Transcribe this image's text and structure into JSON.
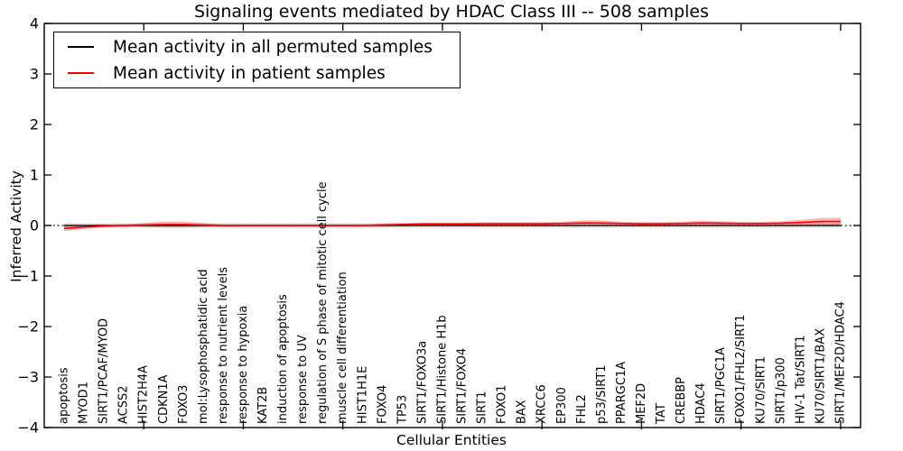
{
  "figure": {
    "title": "Signaling events mediated by HDAC Class III -- 508 samples",
    "xlabel": "Cellular Entities",
    "ylabel": "Inferred Activity"
  },
  "legend": {
    "entries": [
      {
        "label": "Mean activity in all permuted samples",
        "color": "#000000"
      },
      {
        "label": "Mean activity in patient samples",
        "color": "#ff0000"
      }
    ],
    "position": "upper left"
  },
  "chart_data": {
    "type": "line",
    "title": "Signaling events mediated by HDAC Class III -- 508 samples",
    "xlabel": "Cellular Entities",
    "ylabel": "Inferred Activity",
    "ylim": [
      -4,
      4
    ],
    "ytick_values": [
      4,
      3,
      2,
      1,
      0,
      -1,
      -2,
      -3,
      -4
    ],
    "ytick_labels": [
      "4",
      "3",
      "2",
      "1",
      "0",
      "−1",
      "−2",
      "−3",
      "−4"
    ],
    "xtick_positions": [
      4,
      9,
      14,
      19,
      24,
      29,
      34,
      39
    ],
    "zero_reference_line": 0,
    "grid": false,
    "legend_position": "upper left",
    "categories": [
      "apoptosis",
      "MYOD1",
      "SIRT1/PCAF/MYOD",
      "ACSS2",
      "HIST2H4A",
      "CDKN1A",
      "FOXO3",
      "mol:Lysophosphatidic acid",
      "response to nutrient levels",
      "response to hypoxia",
      "KAT2B",
      "induction of apoptosis",
      "response to UV",
      "regulation of S phase of mitotic cell cycle",
      "muscle cell differentiation",
      "HIST1H1E",
      "FOXO4",
      "TP53",
      "SIRT1/FOXO3a",
      "SIRT1/Histone H1b",
      "SIRT1/FOXO4",
      "SIRT1",
      "FOXO1",
      "BAX",
      "XRCC6",
      "EP300",
      "FHL2",
      "p53/SIRT1",
      "PPARGC1A",
      "MEF2D",
      "TAT",
      "CREBBP",
      "HDAC4",
      "SIRT1/PGC1A",
      "FOXO1/FHL2/SIRT1",
      "KU70/SIRT1",
      "SIRT1/p300",
      "HIV-1 Tat/SIRT1",
      "KU70/SIRT1/BAX",
      "SIRT1/MEF2D/HDAC4"
    ],
    "series": [
      {
        "name": "Mean activity in all permuted samples",
        "color": "#000000",
        "band_color": "rgba(0,0,0,0.13)",
        "values": [
          0,
          0,
          0,
          0,
          0,
          0,
          0,
          0,
          0,
          0,
          0,
          0,
          0,
          0,
          0,
          0,
          0,
          0,
          0,
          0,
          0,
          0,
          0,
          0,
          0,
          0,
          0,
          0,
          0,
          0,
          0,
          0,
          0,
          0,
          0,
          0,
          0,
          0,
          0,
          0
        ],
        "band_half_width": [
          0.045,
          0.045,
          0.045,
          0.045,
          0.045,
          0.045,
          0.045,
          0.045,
          0.045,
          0.045,
          0.045,
          0.045,
          0.045,
          0.045,
          0.045,
          0.045,
          0.045,
          0.045,
          0.045,
          0.045,
          0.045,
          0.045,
          0.045,
          0.045,
          0.045,
          0.045,
          0.045,
          0.045,
          0.045,
          0.045,
          0.045,
          0.045,
          0.045,
          0.045,
          0.045,
          0.045,
          0.045,
          0.045,
          0.045,
          0.045
        ]
      },
      {
        "name": "Mean activity in patient samples",
        "color": "#ff0000",
        "band_color": "rgba(255,0,0,0.28)",
        "values": [
          -0.06,
          -0.03,
          -0.01,
          0.0,
          0.01,
          0.02,
          0.02,
          0.01,
          0.0,
          0.0,
          0.0,
          0.0,
          0.0,
          0.0,
          0.0,
          0.0,
          0.01,
          0.02,
          0.03,
          0.03,
          0.03,
          0.035,
          0.035,
          0.035,
          0.035,
          0.04,
          0.05,
          0.05,
          0.04,
          0.035,
          0.035,
          0.04,
          0.05,
          0.045,
          0.04,
          0.04,
          0.045,
          0.06,
          0.08,
          0.08
        ],
        "band_half_width": [
          0.05,
          0.04,
          0.03,
          0.025,
          0.04,
          0.06,
          0.06,
          0.04,
          0.025,
          0.025,
          0.025,
          0.025,
          0.025,
          0.025,
          0.025,
          0.025,
          0.03,
          0.03,
          0.03,
          0.03,
          0.03,
          0.03,
          0.03,
          0.03,
          0.03,
          0.035,
          0.05,
          0.05,
          0.035,
          0.03,
          0.03,
          0.035,
          0.045,
          0.04,
          0.035,
          0.035,
          0.04,
          0.05,
          0.07,
          0.075
        ]
      }
    ]
  }
}
